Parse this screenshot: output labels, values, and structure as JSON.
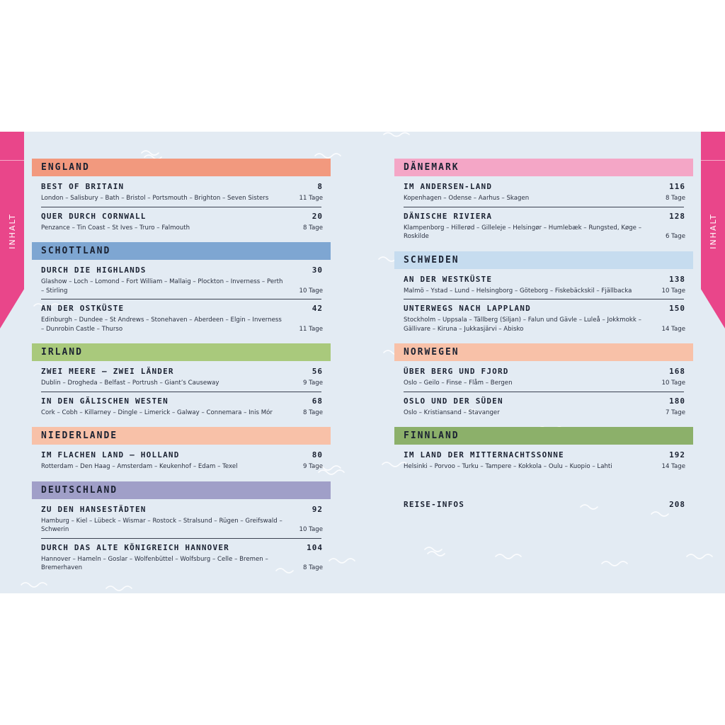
{
  "tabs": {
    "label": "INHALT"
  },
  "sections_left": [
    {
      "title": "ENGLAND",
      "color": "#f2997e",
      "entries": [
        {
          "title": "BEST OF BRITAIN",
          "page": "8",
          "route": "London – Salisbury – Bath – Bristol – Portsmouth – Brighton – Seven Sisters",
          "days": "11 Tage"
        },
        {
          "title": "QUER DURCH CORNWALL",
          "page": "20",
          "route": "Penzance – Tin Coast – St Ives – Truro – Falmouth",
          "days": "8 Tage"
        }
      ]
    },
    {
      "title": "SCHOTTLAND",
      "color": "#7ea6d2",
      "entries": [
        {
          "title": "DURCH DIE HIGHLANDS",
          "page": "30",
          "route": "Glashow – Loch – Lomond – Fort William – Mallaig – Plockton – Inverness – Perth – Stirling",
          "days": "10 Tage"
        },
        {
          "title": "AN DER OSTKÜSTE",
          "page": "42",
          "route": "Edinburgh – Dundee – St Andrews – Stonehaven – Aberdeen – Elgin – Inverness – Dunrobin Castle – Thurso",
          "days": "11 Tage"
        }
      ]
    },
    {
      "title": "IRLAND",
      "color": "#a9c97c",
      "entries": [
        {
          "title": "ZWEI MEERE – ZWEI LÄNDER",
          "page": "56",
          "route": "Dublin – Drogheda – Belfast – Portrush – Giant’s Causeway",
          "days": "9 Tage"
        },
        {
          "title": "IN DEN GÄLISCHEN WESTEN",
          "page": "68",
          "route": "Cork – Cobh – Killarney – Dingle – Limerick – Galway – Connemara – Inis Mór",
          "days": "8 Tage"
        }
      ]
    },
    {
      "title": "NIEDERLANDE",
      "color": "#f8c1a8",
      "entries": [
        {
          "title": "IM FLACHEN LAND – HOLLAND",
          "page": "80",
          "route": "Rotterdam – Den Haag – Amsterdam – Keukenhof – Edam – Texel",
          "days": "9 Tage"
        }
      ]
    },
    {
      "title": "DEUTSCHLAND",
      "color": "#a09fc8",
      "entries": [
        {
          "title": "ZU DEN HANSESTÄDTEN",
          "page": "92",
          "route": "Hamburg – Kiel – Lübeck – Wismar – Rostock – Stralsund – Rügen – Greifswald – Schwerin",
          "days": "10 Tage"
        },
        {
          "title": "DURCH DAS ALTE KÖNIGREICH HANNOVER",
          "page": "104",
          "route": "Hannover – Hameln – Goslar – Wolfenbüttel – Wolfsburg – Celle – Bremen – Bremerhaven",
          "days": "8 Tage"
        }
      ]
    }
  ],
  "sections_right": [
    {
      "title": "DÄNEMARK",
      "color": "#f4a6c6",
      "entries": [
        {
          "title": "IM ANDERSEN-LAND",
          "page": "116",
          "route": "Kopenhagen – Odense – Aarhus – Skagen",
          "days": "8 Tage"
        },
        {
          "title": "DÄNISCHE RIVIERA",
          "page": "128",
          "route": "Klampenborg – Hillerød – Gilleleje – Helsingør – Humlebæk – Rungsted, Køge – Roskilde",
          "days": "6 Tage"
        }
      ]
    },
    {
      "title": "SCHWEDEN",
      "color": "#c6dcef",
      "entries": [
        {
          "title": "AN DER WESTKÜSTE",
          "page": "138",
          "route": "Malmö – Ystad – Lund – Helsingborg – Göteborg – Fiskebäckskil – Fjällbacka",
          "days": "10 Tage"
        },
        {
          "title": "UNTERWEGS NACH LAPPLAND",
          "page": "150",
          "route": "Stockholm – Uppsala – Tällberg (Siljan) – Falun und Gävle – Luleå – Jokkmokk – Gällivare – Kiruna – Jukkasjärvi – Abisko",
          "days": "14 Tage"
        }
      ]
    },
    {
      "title": "NORWEGEN",
      "color": "#f8c1a8",
      "entries": [
        {
          "title": "ÜBER BERG UND FJORD",
          "page": "168",
          "route": "Oslo – Geilo – Finse – Flåm – Bergen",
          "days": "10 Tage"
        },
        {
          "title": "OSLO UND DER SÜDEN",
          "page": "180",
          "route": "Oslo – Kristiansand – Stavanger",
          "days": "7 Tage"
        }
      ]
    },
    {
      "title": "FINNLAND",
      "color": "#8cb06a",
      "entries": [
        {
          "title": "IM LAND DER MITTERNACHTSSONNE",
          "page": "192",
          "route": "Helsinki – Porvoo – Turku – Tampere – Kokkola – Oulu – Kuopio – Lahti",
          "days": "14 Tage"
        }
      ]
    }
  ],
  "extra": {
    "title": "REISE-INFOS",
    "page": "208"
  }
}
